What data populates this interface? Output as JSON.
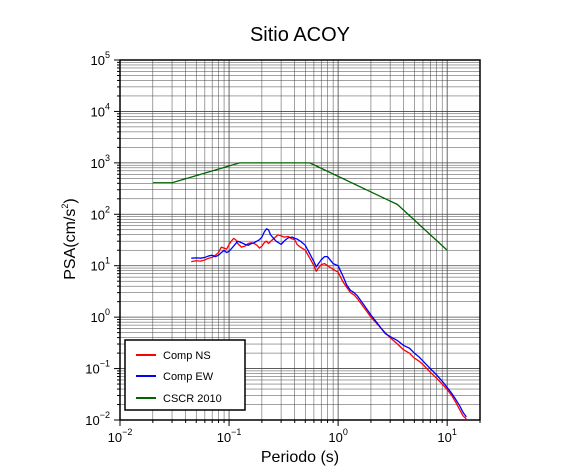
{
  "chart_data": {
    "type": "line",
    "title": "Sitio ACOY",
    "xlabel": "Periodo (s)",
    "ylabel_base": "PSA(cm/s",
    "ylabel_sup": "2",
    "ylabel_tail": ")",
    "x_scale": "log",
    "y_scale": "log",
    "xlim": [
      0.01,
      20
    ],
    "ylim": [
      0.01,
      100000
    ],
    "grid": true,
    "legend_position": "bottom-left",
    "x_ticks": [
      {
        "base": "10",
        "exp": "−2",
        "value": 0.01
      },
      {
        "base": "10",
        "exp": "−1",
        "value": 0.1
      },
      {
        "base": "10",
        "exp": "0",
        "value": 1
      },
      {
        "base": "10",
        "exp": "1",
        "value": 10
      }
    ],
    "y_ticks": [
      {
        "base": "10",
        "exp": "−2",
        "value": 0.01
      },
      {
        "base": "10",
        "exp": "−1",
        "value": 0.1
      },
      {
        "base": "10",
        "exp": "0",
        "value": 1
      },
      {
        "base": "10",
        "exp": "1",
        "value": 10
      },
      {
        "base": "10",
        "exp": "2",
        "value": 100
      },
      {
        "base": "10",
        "exp": "3",
        "value": 1000
      },
      {
        "base": "10",
        "exp": "4",
        "value": 10000
      },
      {
        "base": "10",
        "exp": "5",
        "value": 100000
      }
    ],
    "series": [
      {
        "name": "Comp NS",
        "color": "#ff0000",
        "points": [
          [
            0.045,
            12
          ],
          [
            0.05,
            12.5
          ],
          [
            0.055,
            12.3
          ],
          [
            0.06,
            13
          ],
          [
            0.065,
            14
          ],
          [
            0.07,
            14.5
          ],
          [
            0.075,
            16
          ],
          [
            0.08,
            18
          ],
          [
            0.085,
            23
          ],
          [
            0.09,
            22
          ],
          [
            0.095,
            21
          ],
          [
            0.1,
            26
          ],
          [
            0.105,
            30
          ],
          [
            0.11,
            34
          ],
          [
            0.115,
            32
          ],
          [
            0.12,
            27
          ],
          [
            0.13,
            23
          ],
          [
            0.14,
            24
          ],
          [
            0.15,
            27
          ],
          [
            0.16,
            28
          ],
          [
            0.17,
            27
          ],
          [
            0.18,
            25
          ],
          [
            0.19,
            22
          ],
          [
            0.2,
            24
          ],
          [
            0.21,
            28
          ],
          [
            0.22,
            30
          ],
          [
            0.23,
            27
          ],
          [
            0.25,
            32
          ],
          [
            0.27,
            37
          ],
          [
            0.28,
            40
          ],
          [
            0.3,
            38
          ],
          [
            0.32,
            36
          ],
          [
            0.35,
            37
          ],
          [
            0.37,
            34
          ],
          [
            0.4,
            32
          ],
          [
            0.42,
            26
          ],
          [
            0.45,
            23
          ],
          [
            0.5,
            20
          ],
          [
            0.55,
            14
          ],
          [
            0.6,
            10
          ],
          [
            0.63,
            7.8
          ],
          [
            0.66,
            9
          ],
          [
            0.7,
            10.5
          ],
          [
            0.75,
            11
          ],
          [
            0.8,
            10
          ],
          [
            0.9,
            8.5
          ],
          [
            1.0,
            7.5
          ],
          [
            1.1,
            5
          ],
          [
            1.2,
            3.8
          ],
          [
            1.3,
            3
          ],
          [
            1.4,
            2.7
          ],
          [
            1.5,
            2.3
          ],
          [
            1.7,
            1.6
          ],
          [
            2.0,
            1.0
          ],
          [
            2.3,
            0.72
          ],
          [
            2.7,
            0.5
          ],
          [
            3.0,
            0.4
          ],
          [
            3.5,
            0.3
          ],
          [
            4.0,
            0.23
          ],
          [
            4.5,
            0.2
          ],
          [
            5.0,
            0.16
          ],
          [
            5.5,
            0.14
          ],
          [
            6.0,
            0.12
          ],
          [
            7.0,
            0.085
          ],
          [
            8.0,
            0.065
          ],
          [
            9.0,
            0.05
          ],
          [
            10.0,
            0.039
          ],
          [
            11.0,
            0.03
          ],
          [
            12.0,
            0.022
          ],
          [
            13.0,
            0.016
          ],
          [
            14.0,
            0.012
          ],
          [
            15.0,
            0.0105
          ]
        ]
      },
      {
        "name": "Comp EW",
        "color": "#0000ff",
        "points": [
          [
            0.045,
            14
          ],
          [
            0.05,
            14.2
          ],
          [
            0.055,
            14
          ],
          [
            0.06,
            14.5
          ],
          [
            0.065,
            15.5
          ],
          [
            0.07,
            16
          ],
          [
            0.075,
            15
          ],
          [
            0.08,
            16
          ],
          [
            0.085,
            18
          ],
          [
            0.09,
            20
          ],
          [
            0.095,
            18
          ],
          [
            0.1,
            19
          ],
          [
            0.11,
            24
          ],
          [
            0.12,
            30
          ],
          [
            0.13,
            28
          ],
          [
            0.14,
            26
          ],
          [
            0.15,
            25
          ],
          [
            0.16,
            27
          ],
          [
            0.17,
            28
          ],
          [
            0.18,
            30
          ],
          [
            0.19,
            32
          ],
          [
            0.2,
            36
          ],
          [
            0.21,
            45
          ],
          [
            0.22,
            52
          ],
          [
            0.23,
            50
          ],
          [
            0.24,
            40
          ],
          [
            0.25,
            36
          ],
          [
            0.27,
            30
          ],
          [
            0.3,
            26
          ],
          [
            0.33,
            32
          ],
          [
            0.35,
            35
          ],
          [
            0.38,
            36
          ],
          [
            0.4,
            34
          ],
          [
            0.42,
            33
          ],
          [
            0.45,
            30
          ],
          [
            0.5,
            25
          ],
          [
            0.55,
            17
          ],
          [
            0.6,
            12
          ],
          [
            0.63,
            9.5
          ],
          [
            0.66,
            11
          ],
          [
            0.7,
            13
          ],
          [
            0.75,
            15
          ],
          [
            0.8,
            15
          ],
          [
            0.9,
            11
          ],
          [
            1.0,
            10
          ],
          [
            1.1,
            6.5
          ],
          [
            1.2,
            4.2
          ],
          [
            1.3,
            3.3
          ],
          [
            1.4,
            3.0
          ],
          [
            1.5,
            2.6
          ],
          [
            1.7,
            1.8
          ],
          [
            2.0,
            1.1
          ],
          [
            2.3,
            0.75
          ],
          [
            2.7,
            0.48
          ],
          [
            3.0,
            0.42
          ],
          [
            3.5,
            0.35
          ],
          [
            4.0,
            0.28
          ],
          [
            4.5,
            0.25
          ],
          [
            5.0,
            0.2
          ],
          [
            5.5,
            0.17
          ],
          [
            6.0,
            0.14
          ],
          [
            7.0,
            0.1
          ],
          [
            8.0,
            0.075
          ],
          [
            9.0,
            0.057
          ],
          [
            10.0,
            0.043
          ],
          [
            11.0,
            0.033
          ],
          [
            12.0,
            0.025
          ],
          [
            13.0,
            0.019
          ],
          [
            14.0,
            0.014
          ],
          [
            15.0,
            0.0115
          ]
        ]
      },
      {
        "name": "CSCR 2010",
        "color": "#006400",
        "points": [
          [
            0.02,
            410
          ],
          [
            0.03,
            410
          ],
          [
            0.125,
            1000
          ],
          [
            0.55,
            1000
          ],
          [
            3.5,
            155
          ],
          [
            10.0,
            20
          ]
        ]
      }
    ]
  }
}
